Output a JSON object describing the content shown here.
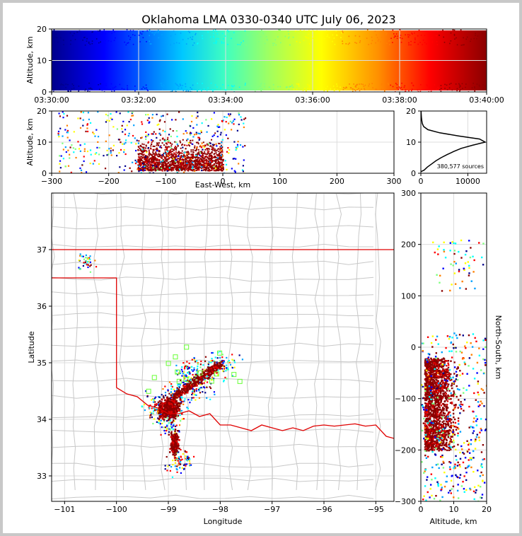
{
  "title": "Oklahoma LMA 0330-0340 UTC July 06, 2023",
  "colors": {
    "state_border": "#e00000",
    "county_lines": "#c8c8c8",
    "grid": "#dcdcdc",
    "colormap": [
      "#00008b",
      "#0000ff",
      "#00a0ff",
      "#00ffff",
      "#80ff80",
      "#ffff00",
      "#ff8000",
      "#ff0000",
      "#8b0000"
    ]
  },
  "chart_data": [
    {
      "id": "time_height",
      "type": "scatter",
      "ylabel": "Altitude, km",
      "xlim": [
        "03:30:00",
        "03:40:00"
      ],
      "ylim": [
        0,
        20
      ],
      "xticks": [
        "03:30:00",
        "03:32:00",
        "03:34:00",
        "03:36:00",
        "03:38:00",
        "03:40:00"
      ],
      "yticks": [
        "0",
        "10",
        "20"
      ],
      "color_by": "time",
      "grid": true
    },
    {
      "id": "ew_height",
      "type": "scatter",
      "xlabel": "East-West, km",
      "ylabel": "Altitude, km",
      "xlim": [
        -300,
        300
      ],
      "ylim": [
        0,
        20
      ],
      "xticks": [
        "−300",
        "−200",
        "−100",
        "0",
        "100",
        "200",
        "300"
      ],
      "yticks": [
        "0",
        "10",
        "20"
      ],
      "core_extent_x": [
        -160,
        10
      ],
      "grid": true
    },
    {
      "id": "height_histogram",
      "type": "line",
      "xlim": [
        0,
        14000
      ],
      "ylim": [
        0,
        20
      ],
      "xticks": [
        "0",
        "10000"
      ],
      "yticks": [
        "0",
        "10",
        "20"
      ],
      "annotation": "380,577 sources",
      "points": [
        [
          0,
          0.5
        ],
        [
          700,
          1
        ],
        [
          1400,
          2
        ],
        [
          2300,
          3
        ],
        [
          3200,
          4
        ],
        [
          4300,
          5
        ],
        [
          5600,
          6
        ],
        [
          7000,
          7
        ],
        [
          8600,
          8
        ],
        [
          11000,
          9
        ],
        [
          13700,
          10
        ],
        [
          12500,
          11
        ],
        [
          8000,
          12
        ],
        [
          4000,
          13
        ],
        [
          1500,
          14
        ],
        [
          600,
          15
        ],
        [
          300,
          16
        ],
        [
          200,
          17
        ],
        [
          120,
          18
        ],
        [
          80,
          19
        ],
        [
          50,
          20
        ]
      ],
      "grid": true
    },
    {
      "id": "plan_view",
      "type": "scatter",
      "xlabel": "Longitude",
      "ylabel": "Latitude",
      "xlim": [
        -101.25,
        -94.65
      ],
      "ylim": [
        32.55,
        38.0
      ],
      "xticks": [
        "−101",
        "−100",
        "−99",
        "−98",
        "−97",
        "−96",
        "−95"
      ],
      "yticks": [
        "33",
        "34",
        "35",
        "36",
        "37"
      ],
      "core": [
        [
          -98.8,
          33.3
        ],
        [
          -99.0,
          34.0
        ],
        [
          -99.2,
          34.2
        ],
        [
          -98.9,
          34.4
        ],
        [
          -98.5,
          34.6
        ],
        [
          -98.3,
          34.8
        ],
        [
          -98.0,
          35.0
        ],
        [
          -98.6,
          34.8
        ]
      ],
      "grid": true
    },
    {
      "id": "ns_height",
      "type": "scatter",
      "xlabel": "Altitude, km",
      "ylabel": "North-South, km",
      "xlim": [
        0,
        20
      ],
      "ylim": [
        -300,
        300
      ],
      "xticks": [
        "0",
        "10",
        "20"
      ],
      "yticks": [
        "300",
        "200",
        "100",
        "0",
        "−100",
        "−200",
        "−300"
      ],
      "core_extent_y": [
        -200,
        -20
      ],
      "grid": true
    }
  ]
}
